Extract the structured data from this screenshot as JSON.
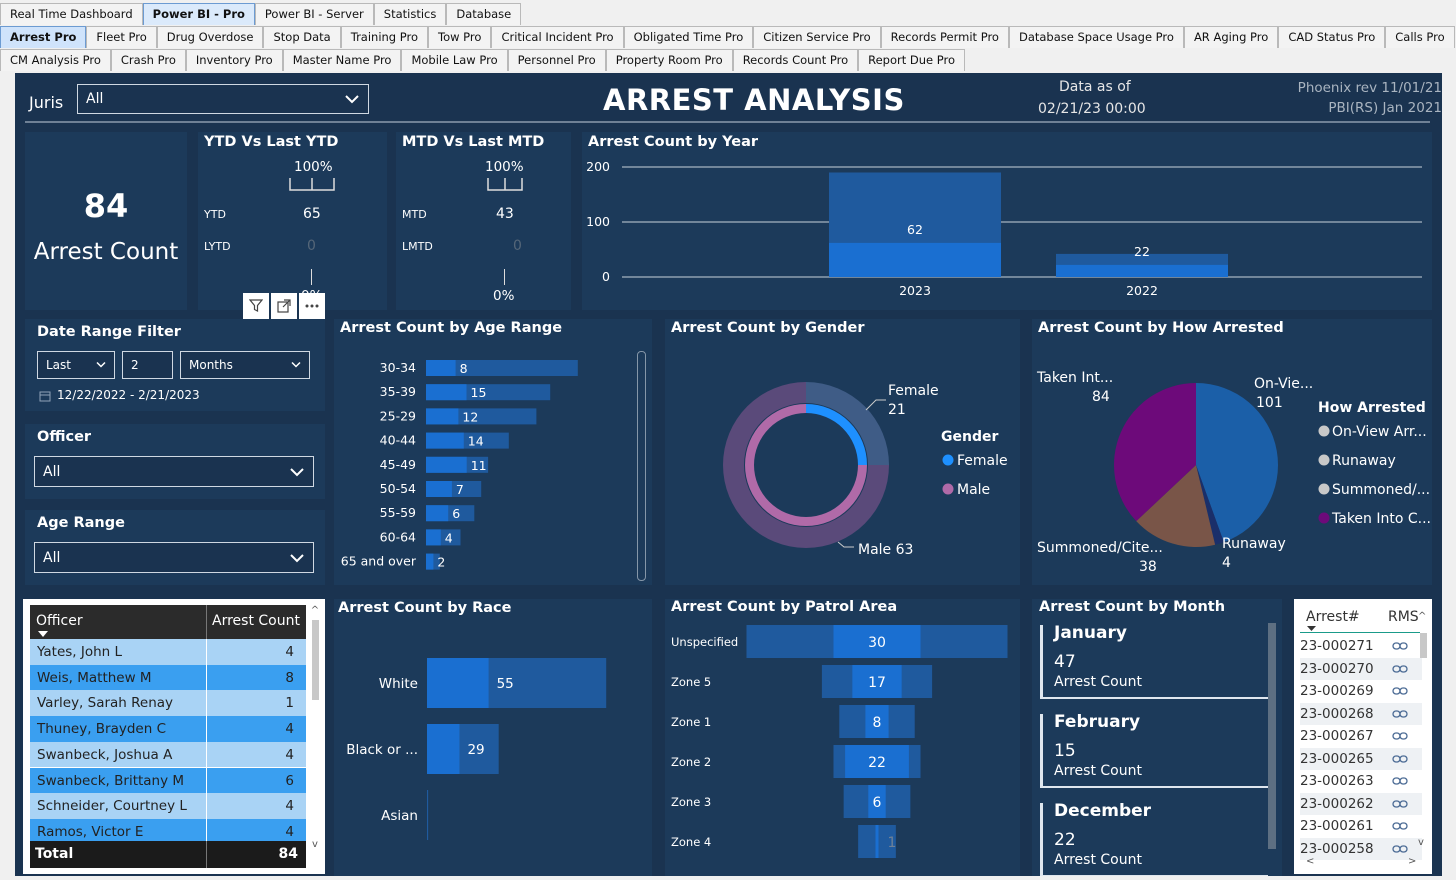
{
  "tabs_row1": [
    {
      "label": "Real Time Dashboard",
      "active": false
    },
    {
      "label": "Power BI - Pro",
      "active": true
    },
    {
      "label": "Power BI - Server",
      "active": false
    },
    {
      "label": "Statistics",
      "active": false
    },
    {
      "label": "Database",
      "active": false
    }
  ],
  "tabs_row2": [
    {
      "label": "Arrest Pro",
      "active": true
    },
    {
      "label": "Fleet Pro",
      "active": false
    },
    {
      "label": "Drug Overdose",
      "active": false
    },
    {
      "label": "Stop Data",
      "active": false
    },
    {
      "label": "Training Pro",
      "active": false
    },
    {
      "label": "Tow Pro",
      "active": false
    },
    {
      "label": "Critical Incident Pro",
      "active": false
    },
    {
      "label": "Obligated Time Pro",
      "active": false
    },
    {
      "label": "Citizen Service Pro",
      "active": false
    },
    {
      "label": "Records Permit Pro",
      "active": false
    },
    {
      "label": "Database Space Usage Pro",
      "active": false
    },
    {
      "label": "AR Aging Pro",
      "active": false
    },
    {
      "label": "CAD Status Pro",
      "active": false
    },
    {
      "label": "Calls Pro",
      "active": false
    }
  ],
  "tabs_row3": [
    {
      "label": "CM Analysis Pro",
      "active": false
    },
    {
      "label": "Crash Pro",
      "active": false
    },
    {
      "label": "Inventory Pro",
      "active": false
    },
    {
      "label": "Master Name Pro",
      "active": false
    },
    {
      "label": "Mobile Law Pro",
      "active": false
    },
    {
      "label": "Personnel Pro",
      "active": false
    },
    {
      "label": "Property Room Pro",
      "active": false
    },
    {
      "label": "Records Count Pro",
      "active": false
    },
    {
      "label": "Report Due Pro",
      "active": false
    }
  ],
  "header": {
    "juris_label": "Juris",
    "juris_value": "All",
    "title": "ARREST ANALYSIS",
    "data_as_of_label": "Data as of",
    "data_as_of_value": "02/21/23 00:00",
    "rev_line1": "Phoenix rev 11/01/21",
    "rev_line2": "PBI(RS) Jan 2021"
  },
  "kpi": {
    "value": "84",
    "label": "Arrest Count"
  },
  "ytd": {
    "title": "YTD Vs Last YTD",
    "target_pct": "100%",
    "row1_label": "YTD",
    "row1_value": "65",
    "row2_label": "LYTD",
    "row2_value": "0",
    "bottom_pct": "0%"
  },
  "mtd": {
    "title": "MTD Vs Last MTD",
    "target_pct": "100%",
    "row1_label": "MTD",
    "row1_value": "43",
    "row2_label": "LMTD",
    "row2_value": "0",
    "bottom_pct": "0%"
  },
  "filters": {
    "date_range_title": "Date Range Filter",
    "date_mode": "Last",
    "date_count": "2",
    "date_unit": "Months",
    "date_range_text": "12/22/2022 - 2/21/2023",
    "officer_title": "Officer",
    "officer_value": "All",
    "age_title": "Age Range",
    "age_value": "All"
  },
  "officer_table": {
    "col1": "Officer",
    "col2": "Arrest Count",
    "rows": [
      {
        "name": "Yates, John L",
        "count": "4"
      },
      {
        "name": "Weis, Matthew M",
        "count": "8"
      },
      {
        "name": "Varley, Sarah Renay",
        "count": "1"
      },
      {
        "name": "Thuney, Brayden C",
        "count": "4"
      },
      {
        "name": "Swanbeck, Joshua A",
        "count": "4"
      },
      {
        "name": "Swanbeck, Brittany M",
        "count": "6"
      },
      {
        "name": "Schneider, Courtney L",
        "count": "4"
      },
      {
        "name": "Ramos, Victor E",
        "count": "4"
      }
    ],
    "total_label": "Total",
    "total_value": "84"
  },
  "month_cards": {
    "title": "Arrest Count by Month",
    "items": [
      {
        "month": "January",
        "value": "47",
        "label": "Arrest Count"
      },
      {
        "month": "February",
        "value": "15",
        "label": "Arrest Count"
      },
      {
        "month": "December",
        "value": "22",
        "label": "Arrest Count"
      }
    ]
  },
  "rms_table": {
    "col1": "Arrest#",
    "col2": "RMS",
    "rows": [
      "23-000271",
      "23-000270",
      "23-000269",
      "23-000268",
      "23-000267",
      "23-000265",
      "23-000263",
      "23-000262",
      "23-000261",
      "23-000258"
    ]
  },
  "colors": {
    "bg": "#1a3350",
    "card": "#1c3a5a",
    "bar": "#1a6fd1",
    "bar_light": "#1f5a9e",
    "female": "#1e90ff",
    "male": "#b06aa8",
    "taken_into": "#6d0a7a",
    "summoned": "#795548",
    "on_view": "#1b5fa8"
  },
  "chart_data": [
    {
      "type": "bar",
      "title": "Arrest Count by Year",
      "categories": [
        "2023",
        "2022"
      ],
      "series": [
        {
          "values": [
            62,
            22
          ]
        }
      ],
      "ytick_labels": [
        "200",
        "100",
        "0"
      ],
      "ylim": [
        0,
        200
      ],
      "background_values": [
        190,
        42
      ],
      "grid": true
    },
    {
      "type": "bar",
      "title": "Arrest Count by Age Range",
      "orientation": "horizontal",
      "categories": [
        "30-34",
        "35-39",
        "25-29",
        "40-44",
        "45-49",
        "50-54",
        "55-59",
        "60-64",
        "65 and over"
      ],
      "values": [
        8,
        15,
        12,
        14,
        11,
        7,
        6,
        4,
        2
      ],
      "background_values": [
        22,
        18,
        16,
        12,
        9,
        8,
        7,
        5,
        2
      ]
    },
    {
      "type": "pie",
      "title": "Arrest Count by Gender",
      "style": "donut",
      "categories": [
        "Female",
        "Male"
      ],
      "values": [
        21,
        63
      ],
      "legend_title": "Gender",
      "legend": [
        "Female",
        "Male"
      ],
      "labels": [
        {
          "name": "Female",
          "value": "21"
        },
        {
          "name": "Male",
          "value": "Male 63"
        }
      ]
    },
    {
      "type": "pie",
      "title": "Arrest Count by How Arrested",
      "categories": [
        "On-View Arr...",
        "Runaway",
        "Summoned/...",
        "Taken Into C..."
      ],
      "values": [
        101,
        4,
        38,
        84
      ],
      "legend_title": "How Arrested",
      "labels": [
        {
          "name": "Taken Int...",
          "value": "84"
        },
        {
          "name": "On-Vie...",
          "value": "101"
        },
        {
          "name": "Summoned/Cite...",
          "value": "38"
        },
        {
          "name": "Runaway",
          "value": "4"
        }
      ]
    },
    {
      "type": "bar",
      "title": "Arrest Count by Race",
      "orientation": "horizontal",
      "categories": [
        "White",
        "Black or ...",
        "Asian"
      ],
      "values": [
        55,
        29,
        0
      ],
      "background_values": [
        160,
        64,
        1
      ]
    },
    {
      "type": "bar",
      "title": "Arrest Count by Patrol Area",
      "orientation": "horizontal",
      "style": "funnel",
      "categories": [
        "Unspecified",
        "Zone 5",
        "Zone 1",
        "Zone 2",
        "Zone 3",
        "Zone 4"
      ],
      "values": [
        30,
        17,
        8,
        22,
        6,
        1
      ],
      "background_values": [
        90,
        38,
        26,
        30,
        23,
        13
      ]
    }
  ]
}
